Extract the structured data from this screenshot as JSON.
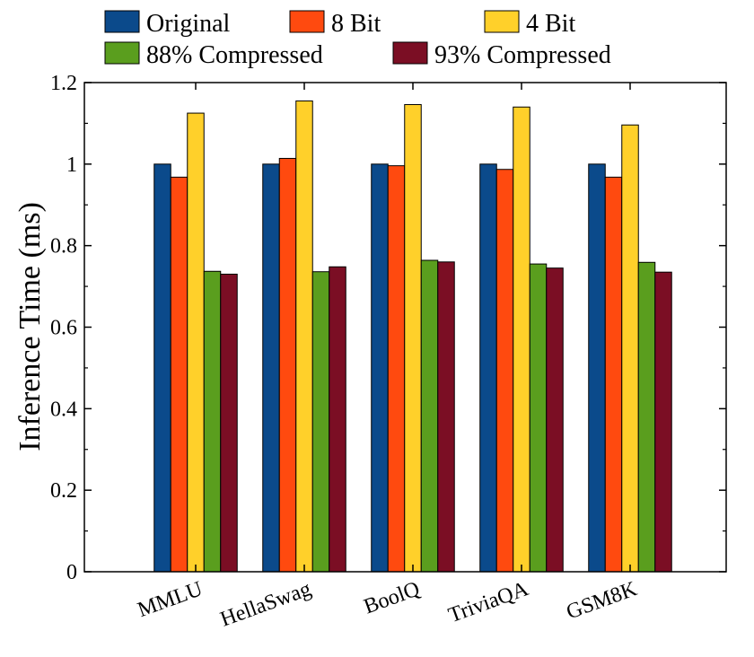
{
  "chart_data": {
    "type": "bar",
    "title": "",
    "xlabel": "",
    "ylabel": "Inference Time (ms)",
    "ylim": [
      0,
      1.2
    ],
    "yticks": [
      0,
      0.2,
      0.4,
      0.6,
      0.8,
      1,
      1.2
    ],
    "ytick_labels": [
      "0",
      "0.2",
      "0.4",
      "0.6",
      "0.8",
      "1",
      "1.2"
    ],
    "categories": [
      "MMLU",
      "HellaSwag",
      "BoolQ",
      "TriviaQA",
      "GSM8K"
    ],
    "grid": false,
    "legend_position": "top",
    "series": [
      {
        "name": "Original",
        "color": "#0b4a8b",
        "values": [
          1.0,
          1.0,
          1.0,
          1.0,
          1.0
        ]
      },
      {
        "name": "8 Bit",
        "color": "#ff4a0f",
        "values": [
          0.968,
          1.014,
          0.996,
          0.987,
          0.968
        ]
      },
      {
        "name": "4 Bit",
        "color": "#ffd02a",
        "values": [
          1.125,
          1.155,
          1.146,
          1.14,
          1.096
        ]
      },
      {
        "name": "88% Compressed",
        "color": "#5a9e1e",
        "values": [
          0.737,
          0.736,
          0.764,
          0.755,
          0.759
        ]
      },
      {
        "name": "93% Compressed",
        "color": "#7b0e24",
        "values": [
          0.73,
          0.748,
          0.76,
          0.745,
          0.735
        ]
      }
    ]
  }
}
